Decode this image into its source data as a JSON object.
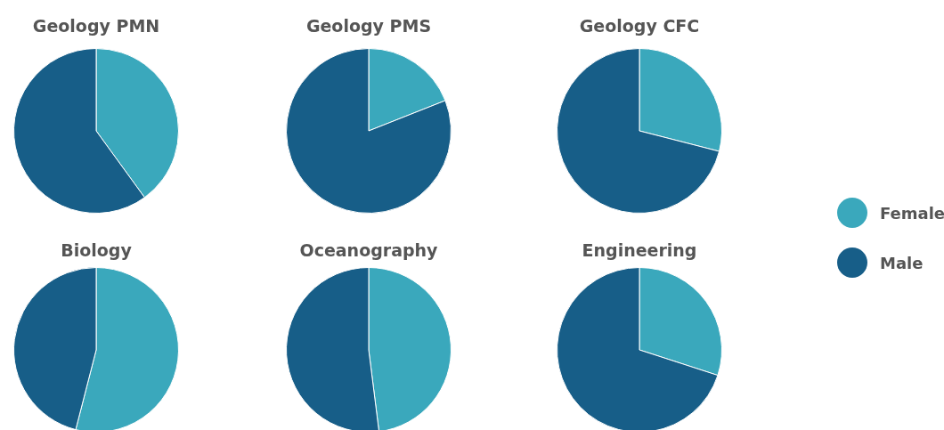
{
  "chart_data": [
    {
      "type": "pie",
      "title": "Geology PMN",
      "categories": [
        "Female",
        "Male"
      ],
      "values": [
        40,
        60
      ],
      "colors": [
        "#3aa8bc",
        "#175e88"
      ],
      "legend": "right"
    },
    {
      "type": "pie",
      "title": "Geology PMS",
      "categories": [
        null,
        null
      ],
      "values": [
        19,
        81
      ],
      "colors": [
        "#3aa8bc",
        "#175e88"
      ]
    },
    {
      "type": "pie",
      "title": "Geology CFC",
      "categories": [
        null,
        null
      ],
      "values": [
        29,
        71
      ],
      "colors": [
        "#3aa8bc",
        "#175e88"
      ]
    },
    {
      "type": "pie",
      "title": "Biology",
      "categories": [
        null,
        null
      ],
      "values": [
        54,
        46
      ],
      "colors": [
        "#3aa8bc",
        "#175e88"
      ]
    },
    {
      "type": "pie",
      "title": "Oceanography",
      "categories": [
        null,
        null
      ],
      "values": [
        48,
        52
      ],
      "colors": [
        "#3aa8bc",
        "#175e88"
      ]
    },
    {
      "type": "pie",
      "title": "Engineering",
      "categories": [
        null,
        null
      ],
      "values": [
        30,
        70
      ],
      "colors": [
        "#3aa8bc",
        "#175e88"
      ]
    }
  ]
}
